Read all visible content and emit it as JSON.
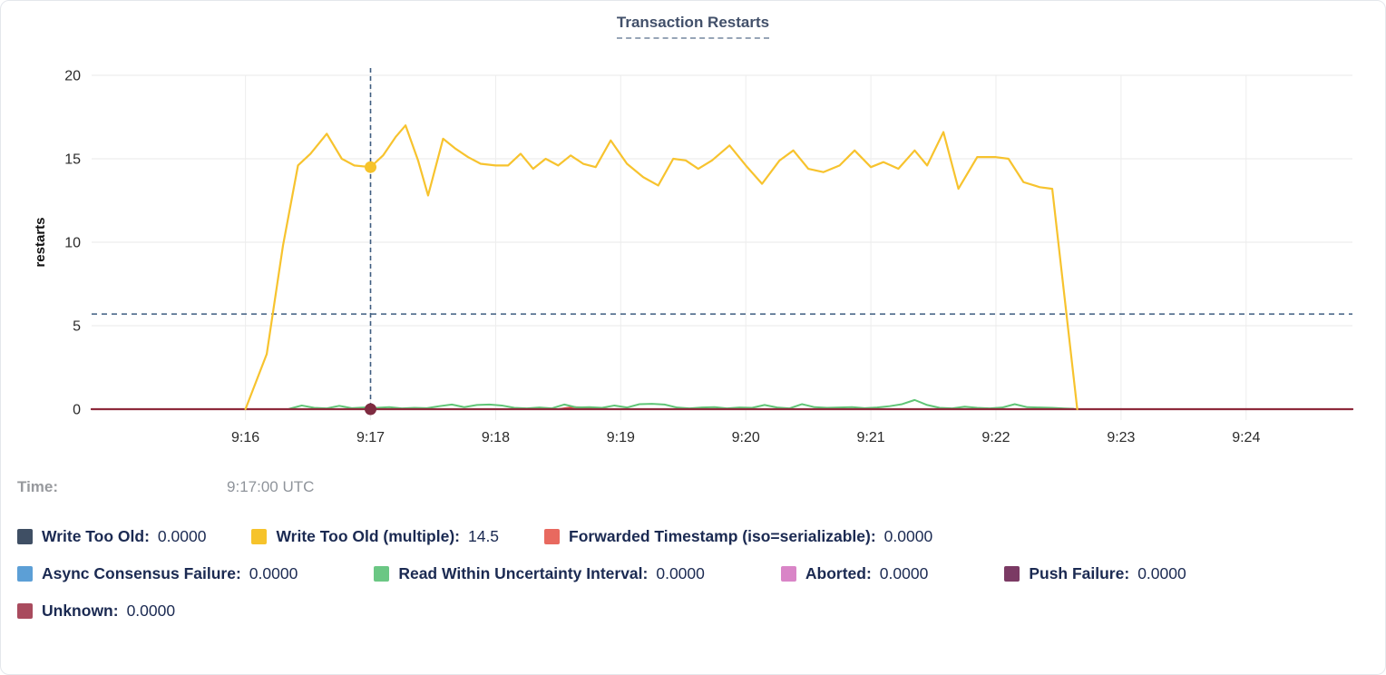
{
  "card": {
    "title": "Transaction Restarts"
  },
  "tooltip": {
    "time_label": "Time:",
    "time_value": "9:17:00 UTC"
  },
  "legend": {
    "rows": [
      [
        {
          "label": "Write Too Old:",
          "value": "0.0000",
          "color": "#3f4f64"
        },
        {
          "label": "Write Too Old (multiple):",
          "value": "14.5",
          "color": "#f6c32b"
        },
        {
          "label": "Forwarded Timestamp (iso=serializable):",
          "value": "0.0000",
          "color": "#e8695f"
        }
      ],
      [
        {
          "label": "Async Consensus Failure:",
          "value": "0.0000",
          "color": "#5c9fd6"
        },
        {
          "label": "Read Within Uncertainty Interval:",
          "value": "0.0000",
          "color": "#6bc784"
        },
        {
          "label": "Aborted:",
          "value": "0.0000",
          "color": "#d985c7"
        },
        {
          "label": "Push Failure:",
          "value": "0.0000",
          "color": "#7b3a64"
        }
      ],
      [
        {
          "label": "Unknown:",
          "value": "0.0000",
          "color": "#a94b5e"
        }
      ]
    ]
  },
  "chart_data": {
    "type": "line",
    "title": "Transaction Restarts",
    "xlabel": "",
    "ylabel": "restarts",
    "x_units": "minutes after 9:00 UTC",
    "x_axis": {
      "min": 14.77,
      "max": 24.85,
      "ticks": [
        16,
        17,
        18,
        19,
        20,
        21,
        22,
        23,
        24
      ],
      "tick_labels": [
        "9:16",
        "9:17",
        "9:18",
        "9:19",
        "9:20",
        "9:21",
        "9:22",
        "9:23",
        "9:24"
      ]
    },
    "y_axis": {
      "min": 0,
      "max": 20,
      "ticks": [
        0,
        5,
        10,
        15,
        20
      ]
    },
    "grid": true,
    "crosshair": {
      "x": 17,
      "time": "9:17:00 UTC",
      "hline_value": 5.7,
      "color": "#3f5d80"
    },
    "hover_points": [
      {
        "series": "Write Too Old (multiple)",
        "x": 17,
        "y": 14.5,
        "color": "#f6c32b"
      },
      {
        "series": "Unknown",
        "x": 17,
        "y": 0,
        "color": "#7e2b40"
      }
    ],
    "series": [
      {
        "name": "Write Too Old",
        "color": "#3f4f64",
        "width": 2,
        "points": [
          [
            14.77,
            0
          ],
          [
            24.85,
            0
          ]
        ]
      },
      {
        "name": "Async Consensus Failure",
        "color": "#5c9fd6",
        "width": 2,
        "points": [
          [
            14.77,
            0
          ],
          [
            24.85,
            0
          ]
        ]
      },
      {
        "name": "Aborted",
        "color": "#d985c7",
        "width": 2,
        "points": [
          [
            14.77,
            0
          ],
          [
            24.85,
            0
          ]
        ]
      },
      {
        "name": "Push Failure",
        "color": "#7b3a64",
        "width": 2,
        "points": [
          [
            14.77,
            0
          ],
          [
            24.85,
            0
          ]
        ]
      },
      {
        "name": "Forwarded Timestamp (iso=serializable)",
        "color": "#dd4f4a",
        "width": 2,
        "points": [
          [
            14.77,
            0
          ],
          [
            18.5,
            0
          ],
          [
            18.62,
            0.12
          ],
          [
            18.75,
            0.1
          ],
          [
            18.9,
            0
          ],
          [
            24.85,
            0
          ]
        ]
      },
      {
        "name": "Read Within Uncertainty Interval",
        "color": "#5fc576",
        "width": 2,
        "points": [
          [
            16.35,
            0.02
          ],
          [
            16.45,
            0.22
          ],
          [
            16.55,
            0.08
          ],
          [
            16.65,
            0.05
          ],
          [
            16.75,
            0.2
          ],
          [
            16.85,
            0.06
          ],
          [
            16.95,
            0.1
          ],
          [
            17.05,
            0.08
          ],
          [
            17.15,
            0.12
          ],
          [
            17.25,
            0.05
          ],
          [
            17.35,
            0.08
          ],
          [
            17.45,
            0.06
          ],
          [
            17.55,
            0.18
          ],
          [
            17.65,
            0.28
          ],
          [
            17.75,
            0.12
          ],
          [
            17.85,
            0.25
          ],
          [
            17.95,
            0.28
          ],
          [
            18.05,
            0.22
          ],
          [
            18.15,
            0.08
          ],
          [
            18.25,
            0.05
          ],
          [
            18.35,
            0.1
          ],
          [
            18.45,
            0.05
          ],
          [
            18.55,
            0.28
          ],
          [
            18.65,
            0.1
          ],
          [
            18.75,
            0.12
          ],
          [
            18.85,
            0.08
          ],
          [
            18.95,
            0.22
          ],
          [
            19.05,
            0.1
          ],
          [
            19.15,
            0.3
          ],
          [
            19.25,
            0.32
          ],
          [
            19.35,
            0.28
          ],
          [
            19.45,
            0.1
          ],
          [
            19.55,
            0.05
          ],
          [
            19.65,
            0.1
          ],
          [
            19.75,
            0.12
          ],
          [
            19.85,
            0.05
          ],
          [
            19.95,
            0.1
          ],
          [
            20.05,
            0.08
          ],
          [
            20.15,
            0.25
          ],
          [
            20.25,
            0.1
          ],
          [
            20.35,
            0.05
          ],
          [
            20.45,
            0.3
          ],
          [
            20.55,
            0.12
          ],
          [
            20.65,
            0.08
          ],
          [
            20.75,
            0.1
          ],
          [
            20.85,
            0.12
          ],
          [
            20.95,
            0.06
          ],
          [
            21.05,
            0.1
          ],
          [
            21.15,
            0.18
          ],
          [
            21.25,
            0.3
          ],
          [
            21.35,
            0.55
          ],
          [
            21.45,
            0.25
          ],
          [
            21.55,
            0.08
          ],
          [
            21.65,
            0.05
          ],
          [
            21.75,
            0.15
          ],
          [
            21.85,
            0.08
          ],
          [
            21.95,
            0.05
          ],
          [
            22.05,
            0.1
          ],
          [
            22.15,
            0.3
          ],
          [
            22.25,
            0.12
          ],
          [
            22.35,
            0.1
          ],
          [
            22.45,
            0.08
          ],
          [
            22.55,
            0.04
          ],
          [
            22.62,
            0.02
          ]
        ]
      },
      {
        "name": "Unknown",
        "color": "#8e2a3c",
        "width": 2.2,
        "points": [
          [
            14.77,
            0
          ],
          [
            24.85,
            0
          ]
        ]
      },
      {
        "name": "Write Too Old (multiple)",
        "color": "#f7c32e",
        "width": 2.2,
        "points": [
          [
            16.0,
            0
          ],
          [
            16.17,
            3.3
          ],
          [
            16.3,
            9.8
          ],
          [
            16.42,
            14.6
          ],
          [
            16.52,
            15.3
          ],
          [
            16.65,
            16.5
          ],
          [
            16.77,
            15.0
          ],
          [
            16.87,
            14.6
          ],
          [
            17.0,
            14.5
          ],
          [
            17.1,
            15.2
          ],
          [
            17.2,
            16.3
          ],
          [
            17.28,
            17.0
          ],
          [
            17.38,
            14.9
          ],
          [
            17.46,
            12.8
          ],
          [
            17.58,
            16.2
          ],
          [
            17.68,
            15.6
          ],
          [
            17.78,
            15.1
          ],
          [
            17.88,
            14.7
          ],
          [
            18.0,
            14.6
          ],
          [
            18.1,
            14.6
          ],
          [
            18.2,
            15.3
          ],
          [
            18.3,
            14.4
          ],
          [
            18.4,
            15.0
          ],
          [
            18.5,
            14.6
          ],
          [
            18.6,
            15.2
          ],
          [
            18.7,
            14.7
          ],
          [
            18.8,
            14.5
          ],
          [
            18.92,
            16.1
          ],
          [
            19.05,
            14.7
          ],
          [
            19.18,
            13.9
          ],
          [
            19.3,
            13.4
          ],
          [
            19.42,
            15.0
          ],
          [
            19.52,
            14.9
          ],
          [
            19.62,
            14.4
          ],
          [
            19.73,
            14.9
          ],
          [
            19.87,
            15.8
          ],
          [
            20.0,
            14.6
          ],
          [
            20.13,
            13.5
          ],
          [
            20.27,
            14.9
          ],
          [
            20.38,
            15.5
          ],
          [
            20.5,
            14.4
          ],
          [
            20.62,
            14.2
          ],
          [
            20.75,
            14.6
          ],
          [
            20.87,
            15.5
          ],
          [
            21.0,
            14.5
          ],
          [
            21.1,
            14.8
          ],
          [
            21.22,
            14.4
          ],
          [
            21.35,
            15.5
          ],
          [
            21.45,
            14.6
          ],
          [
            21.58,
            16.6
          ],
          [
            21.7,
            13.2
          ],
          [
            21.85,
            15.1
          ],
          [
            22.0,
            15.1
          ],
          [
            22.1,
            15.0
          ],
          [
            22.22,
            13.6
          ],
          [
            22.35,
            13.3
          ],
          [
            22.45,
            13.2
          ],
          [
            22.65,
            0
          ]
        ]
      }
    ]
  }
}
